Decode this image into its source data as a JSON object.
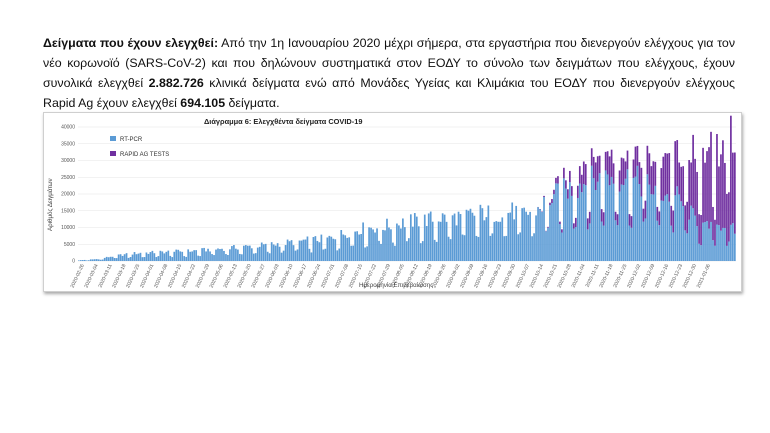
{
  "paragraph": {
    "heading": "Δείγματα που έχουν ελεγχθεί:",
    "text_1": " Από την 1η Ιανουαρίου 2020 μέχρι σήμερα, στα εργαστήρια που διενεργούν ελέγχους για τον νέο κορωνοϊό (SARS-CoV-2) και που δηλώνουν συστηματικά στον ΕΟΔΥ το σύνολο των δειγμάτων που ελέγχους, έχουν συνολικά ελεγχθεί ",
    "pcr_total": "2.882.726",
    "text_2": " κλινικά δείγματα ενώ από Μονάδες Υγείας και Κλιμάκια του ΕΟΔΥ που διενεργούν ελέγχους Rapid Ag έχουν ελεγχθεί ",
    "rapid_total": "694.105",
    "text_3": " δείγματα."
  },
  "chart_data": {
    "type": "bar",
    "stacked": true,
    "title": "Διάγραμμα 6: Ελεγχθέντα δείγματα COVID-19",
    "xlabel": "Ημερομηνία Επιβεβαίωσης",
    "ylabel": "Αριθμός Δειγμάτων",
    "ylim": [
      0,
      40000
    ],
    "yticks": [
      0,
      5000,
      10000,
      15000,
      20000,
      25000,
      30000,
      35000,
      40000
    ],
    "xtick_labels": [
      "2020-02-26",
      "2020-03-04",
      "2020-03-11",
      "2020-03-18",
      "2020-03-25",
      "2020-04-01",
      "2020-04-08",
      "2020-04-15",
      "2020-04-22",
      "2020-04-29",
      "2020-05-06",
      "2020-05-13",
      "2020-05-20",
      "2020-05-27",
      "2020-06-03",
      "2020-06-10",
      "2020-06-17",
      "2020-06-24",
      "2020-07-01",
      "2020-07-08",
      "2020-07-15",
      "2020-07-22",
      "2020-07-29",
      "2020-08-05",
      "2020-08-12",
      "2020-08-19",
      "2020-08-26",
      "2020-09-02",
      "2020-09-09",
      "2020-09-16",
      "2020-09-23",
      "2020-09-30",
      "2020-10-07",
      "2020-10-14",
      "2020-10-21",
      "2020-10-28",
      "2020-11-04",
      "2020-11-11",
      "2020-11-18",
      "2020-11-25",
      "2020-12-02",
      "2020-12-09",
      "2020-12-16",
      "2020-12-23",
      "2020-12-30",
      "2021-01-06"
    ],
    "legend_position": "top-left",
    "series": [
      {
        "name": "RT-PCR",
        "color": "#5b9bd5",
        "anchors": [
          [
            0,
            200
          ],
          [
            10,
            600
          ],
          [
            15,
            1200
          ],
          [
            20,
            1700
          ],
          [
            28,
            2300
          ],
          [
            42,
            2700
          ],
          [
            56,
            3000
          ],
          [
            70,
            3600
          ],
          [
            84,
            4300
          ],
          [
            98,
            5000
          ],
          [
            112,
            6000
          ],
          [
            126,
            6800
          ],
          [
            133,
            8200
          ],
          [
            140,
            9500
          ],
          [
            147,
            10000
          ],
          [
            154,
            10500
          ],
          [
            161,
            11200
          ],
          [
            168,
            12000
          ],
          [
            175,
            12400
          ],
          [
            182,
            13000
          ],
          [
            189,
            13000
          ],
          [
            196,
            13800
          ],
          [
            203,
            14500
          ],
          [
            210,
            14000
          ],
          [
            217,
            15000
          ],
          [
            224,
            14000
          ],
          [
            231,
            15500
          ],
          [
            238,
            19000
          ],
          [
            245,
            21000
          ],
          [
            252,
            23000
          ],
          [
            259,
            24000
          ],
          [
            266,
            24800
          ],
          [
            273,
            25000
          ],
          [
            280,
            24000
          ],
          [
            287,
            22000
          ],
          [
            294,
            20000
          ],
          [
            301,
            19000
          ],
          [
            308,
            14000
          ],
          [
            315,
            10000
          ],
          [
            322,
            11000
          ],
          [
            329,
            9500
          ],
          [
            330,
            9000
          ]
        ]
      },
      {
        "name": "RAPID AG TESTS",
        "color": "#7030a0",
        "anchors": [
          [
            0,
            0
          ],
          [
            230,
            0
          ],
          [
            236,
            400
          ],
          [
            240,
            1500
          ],
          [
            245,
            2800
          ],
          [
            252,
            4800
          ],
          [
            259,
            6500
          ],
          [
            266,
            7000
          ],
          [
            273,
            7000
          ],
          [
            280,
            8000
          ],
          [
            287,
            9500
          ],
          [
            294,
            11000
          ],
          [
            301,
            13000
          ],
          [
            308,
            17000
          ],
          [
            315,
            20000
          ],
          [
            322,
            22000
          ],
          [
            329,
            26000
          ],
          [
            330,
            27000
          ]
        ]
      }
    ]
  }
}
